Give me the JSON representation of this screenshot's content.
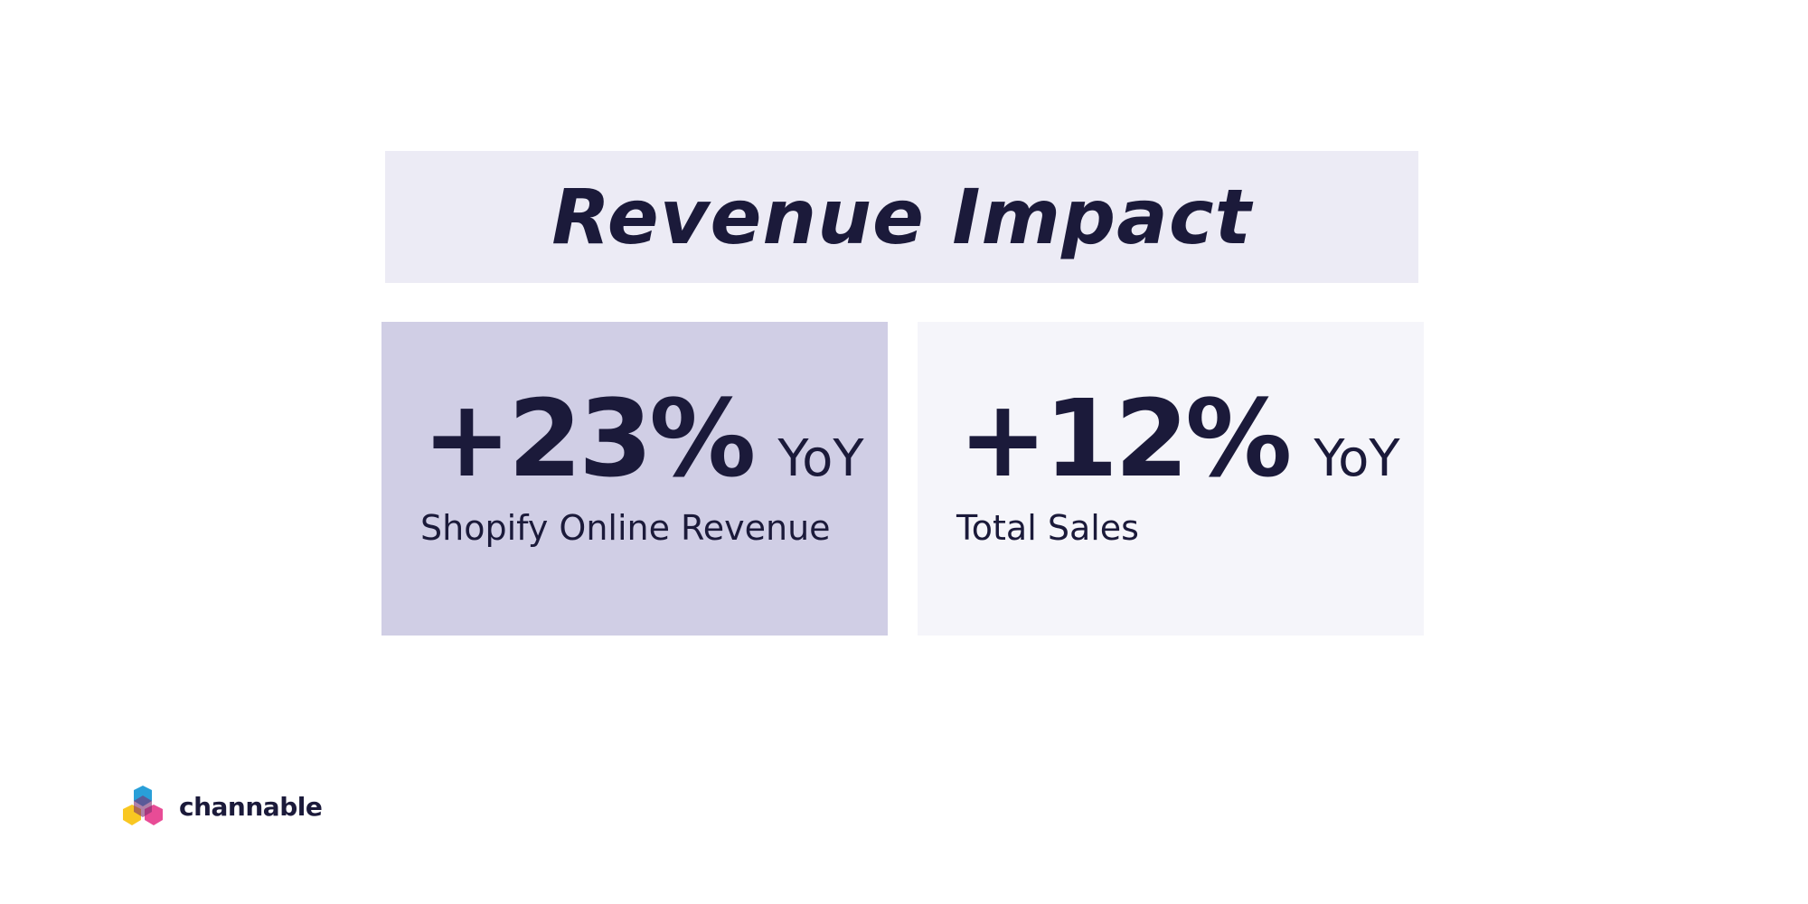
{
  "header": {
    "title": "Revenue Impact"
  },
  "cards": [
    {
      "value": "+23%",
      "unit": "YoY",
      "label": "Shopify Online Revenue"
    },
    {
      "value": "+12%",
      "unit": "YoY",
      "label": "Total Sales"
    }
  ],
  "logo": {
    "text": "channable"
  }
}
